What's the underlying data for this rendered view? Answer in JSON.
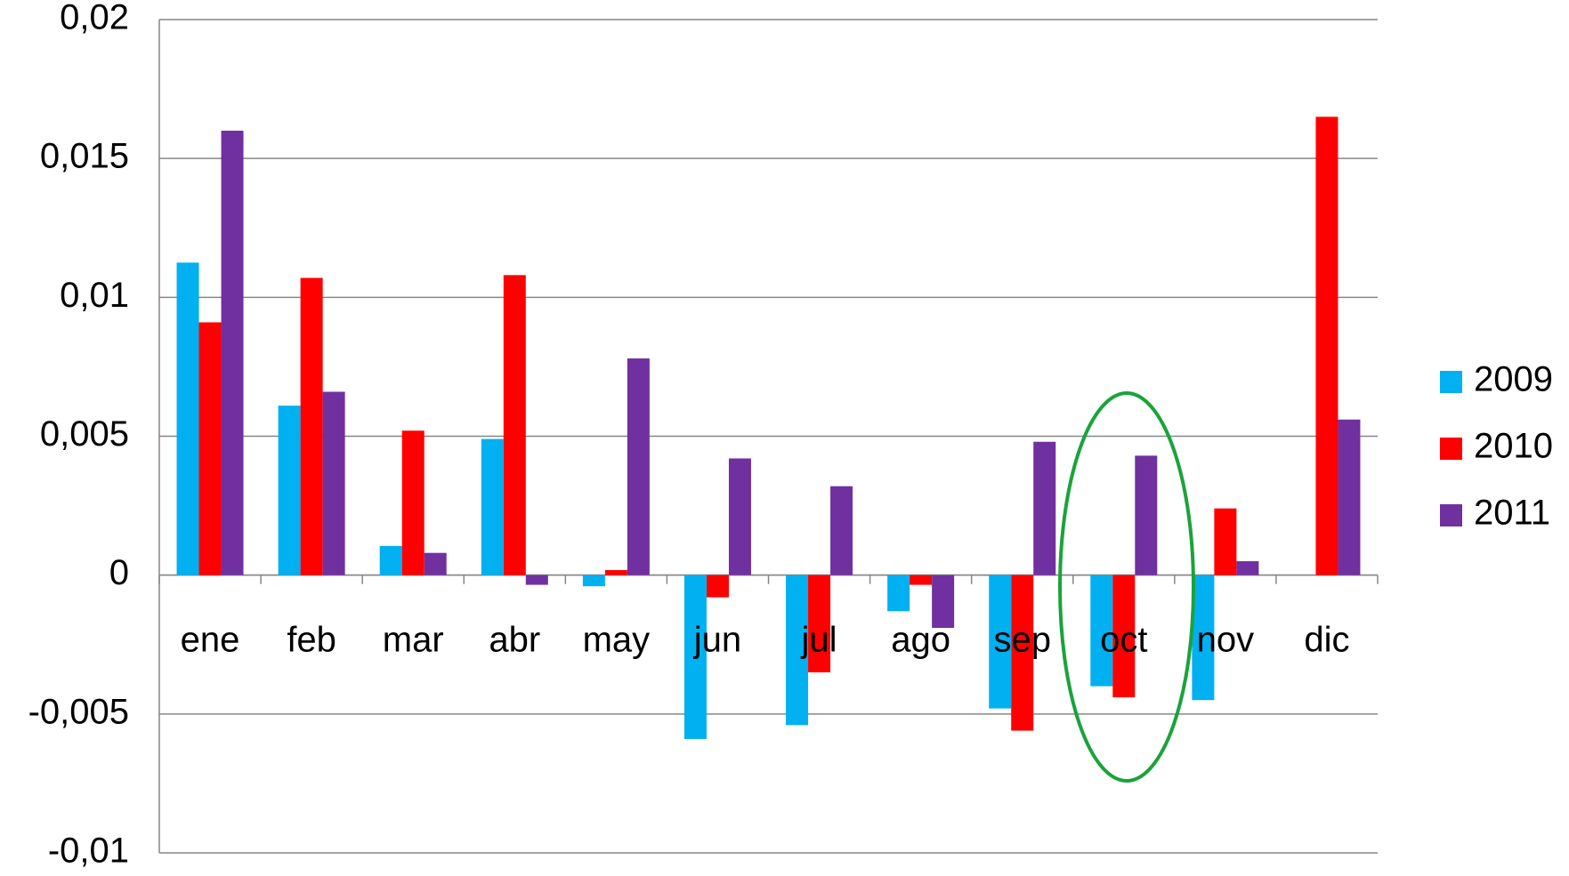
{
  "chart_data": {
    "type": "bar",
    "categories": [
      "ene",
      "feb",
      "mar",
      "abr",
      "may",
      "jun",
      "jul",
      "ago",
      "sep",
      "oct",
      "nov",
      "dic"
    ],
    "series": [
      {
        "name": "2009",
        "color": "#00b0f0",
        "values": [
          0.01125,
          0.0061,
          0.00105,
          0.0049,
          -0.0004,
          -0.0059,
          -0.0054,
          -0.0013,
          -0.0048,
          -0.004,
          -0.0045,
          0
        ]
      },
      {
        "name": "2010",
        "color": "#ff0000",
        "values": [
          0.0091,
          0.0107,
          0.0052,
          0.0108,
          0.00018,
          -0.0008,
          -0.0035,
          -0.00035,
          -0.0056,
          -0.0044,
          0.0024,
          0.0165
        ]
      },
      {
        "name": "2011",
        "color": "#7030a0",
        "values": [
          0.016,
          0.0066,
          0.0008,
          -0.00035,
          0.0078,
          0.0042,
          0.0032,
          -0.0019,
          0.0048,
          0.0043,
          0.0005,
          0.0056
        ]
      }
    ],
    "ylim": [
      -0.01,
      0.02
    ],
    "yticks": [
      {
        "value": -0.01,
        "label": "-0,01"
      },
      {
        "value": -0.005,
        "label": "-0,005"
      },
      0,
      {
        "value": 0.005,
        "label": "0,005"
      },
      {
        "value": 0.01,
        "label": "0,01"
      },
      {
        "value": 0.015,
        "label": "0,015"
      },
      {
        "value": 0.02,
        "label": "0,02"
      }
    ],
    "grid": true,
    "legend": "right"
  }
}
